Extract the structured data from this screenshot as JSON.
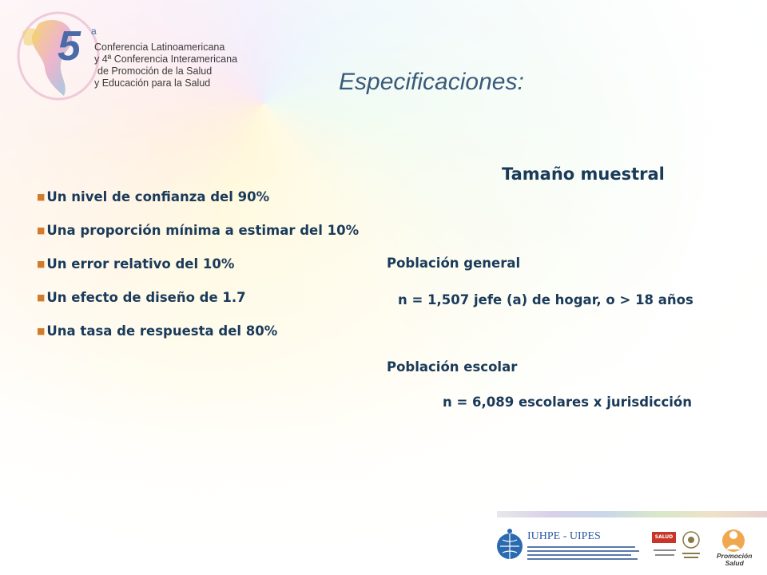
{
  "header": {
    "logo_number": "5",
    "logo_sup": "a",
    "conference_lines": [
      "Conferencia Latinoamericana",
      "y 4ª Conferencia Interamericana",
      "de Promoción de la Salud",
      "y Educación para la Salud"
    ]
  },
  "title": "Especificaciones:",
  "specs": {
    "bullets": [
      "Un nivel de confianza del 90%",
      "Una proporción mínima a estimar del 10%",
      "Un error relativo del 10%",
      "Un efecto de diseño de 1.7",
      "Una tasa de respuesta del 80%"
    ]
  },
  "sample": {
    "title": "Tamaño muestral",
    "general_label": "Población general",
    "general_formula": "n =  1,507 jefe (a) de hogar, o > 18 años",
    "school_label": "Población escolar",
    "school_formula": "n =  6,089 escolares x jurisdicción"
  },
  "footer": {
    "iuhpe": "IUHPE - UIPES",
    "salud_badge": "SALUD",
    "promocion": [
      "Promoción",
      "Salud"
    ]
  },
  "colors": {
    "bullet_marker": "#d07c2a",
    "text": "#1a3a5a",
    "title": "#3a5a7a"
  }
}
